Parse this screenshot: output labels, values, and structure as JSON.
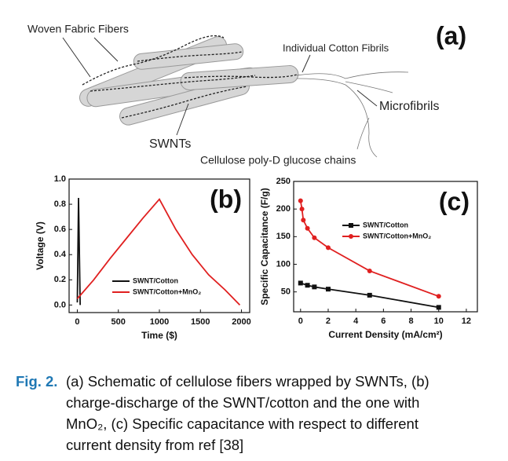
{
  "schematic": {
    "panel_label": "(a)",
    "labels": [
      "Woven Fabric Fibers",
      "Individual Cotton Fibrils",
      "Microfibrils",
      "SWNTs",
      "Cellulose poly-D glucose chains"
    ]
  },
  "chart_data": [
    {
      "type": "line",
      "panel_label": "(b)",
      "xlabel": "Time ($)",
      "ylabel": "Voltage (V)",
      "xlim": [
        -100,
        2100
      ],
      "ylim": [
        -0.06,
        1.0
      ],
      "xticks": [
        0,
        500,
        1000,
        1500,
        2000
      ],
      "yticks": [
        {
          "value": 0,
          "label": "0.0"
        },
        0.2,
        0.4,
        0.6,
        0.8,
        {
          "value": 1,
          "label": "1.0"
        }
      ],
      "legend": "lower right",
      "series": [
        {
          "name": "SWNT/Cotton",
          "color": "#111111",
          "marker": "none",
          "x": [
            0,
            15,
            35
          ],
          "values": [
            0.02,
            0.85,
            0.0
          ]
        },
        {
          "name": "SWNT/Cotton+MnO₂",
          "color": "#e02020",
          "marker": "none",
          "x": [
            0,
            200,
            400,
            600,
            800,
            1000,
            1200,
            1400,
            1600,
            1800,
            1980
          ],
          "values": [
            0.05,
            0.2,
            0.37,
            0.53,
            0.69,
            0.84,
            0.6,
            0.4,
            0.24,
            0.12,
            0.0
          ]
        }
      ]
    },
    {
      "type": "line",
      "panel_label": "(c)",
      "xlabel": "Current Density (mA/cm²)",
      "ylabel": "Specific Capacitance (F/g)",
      "xlim": [
        -0.5,
        12.8
      ],
      "ylim": [
        14,
        250
      ],
      "xticks": [
        0,
        2,
        4,
        6,
        8,
        10,
        12
      ],
      "yticks": [
        50,
        100,
        150,
        200,
        250
      ],
      "legend": "upper right",
      "series": [
        {
          "name": "SWNT/Cotton",
          "color": "#111111",
          "marker": "square",
          "x": [
            0,
            0.5,
            1,
            2,
            5,
            10
          ],
          "values": [
            66,
            62,
            59,
            55,
            44,
            22
          ]
        },
        {
          "name": "SWNT/Cotton+MnO₂",
          "color": "#e02020",
          "marker": "circle",
          "x": [
            0,
            0.1,
            0.2,
            0.5,
            1,
            2,
            5,
            10
          ],
          "values": [
            215,
            200,
            180,
            165,
            148,
            130,
            88,
            42
          ]
        }
      ]
    }
  ],
  "caption": {
    "label": "Fig. 2.",
    "lines": [
      "(a) Schematic of cellulose fibers wrapped by SWNTs, (b)",
      "charge-discharge of the SWNT/cotton and the one with",
      "MnO₂, (c) Specific capacitance with respect to different",
      "current density from ref [38]"
    ]
  }
}
